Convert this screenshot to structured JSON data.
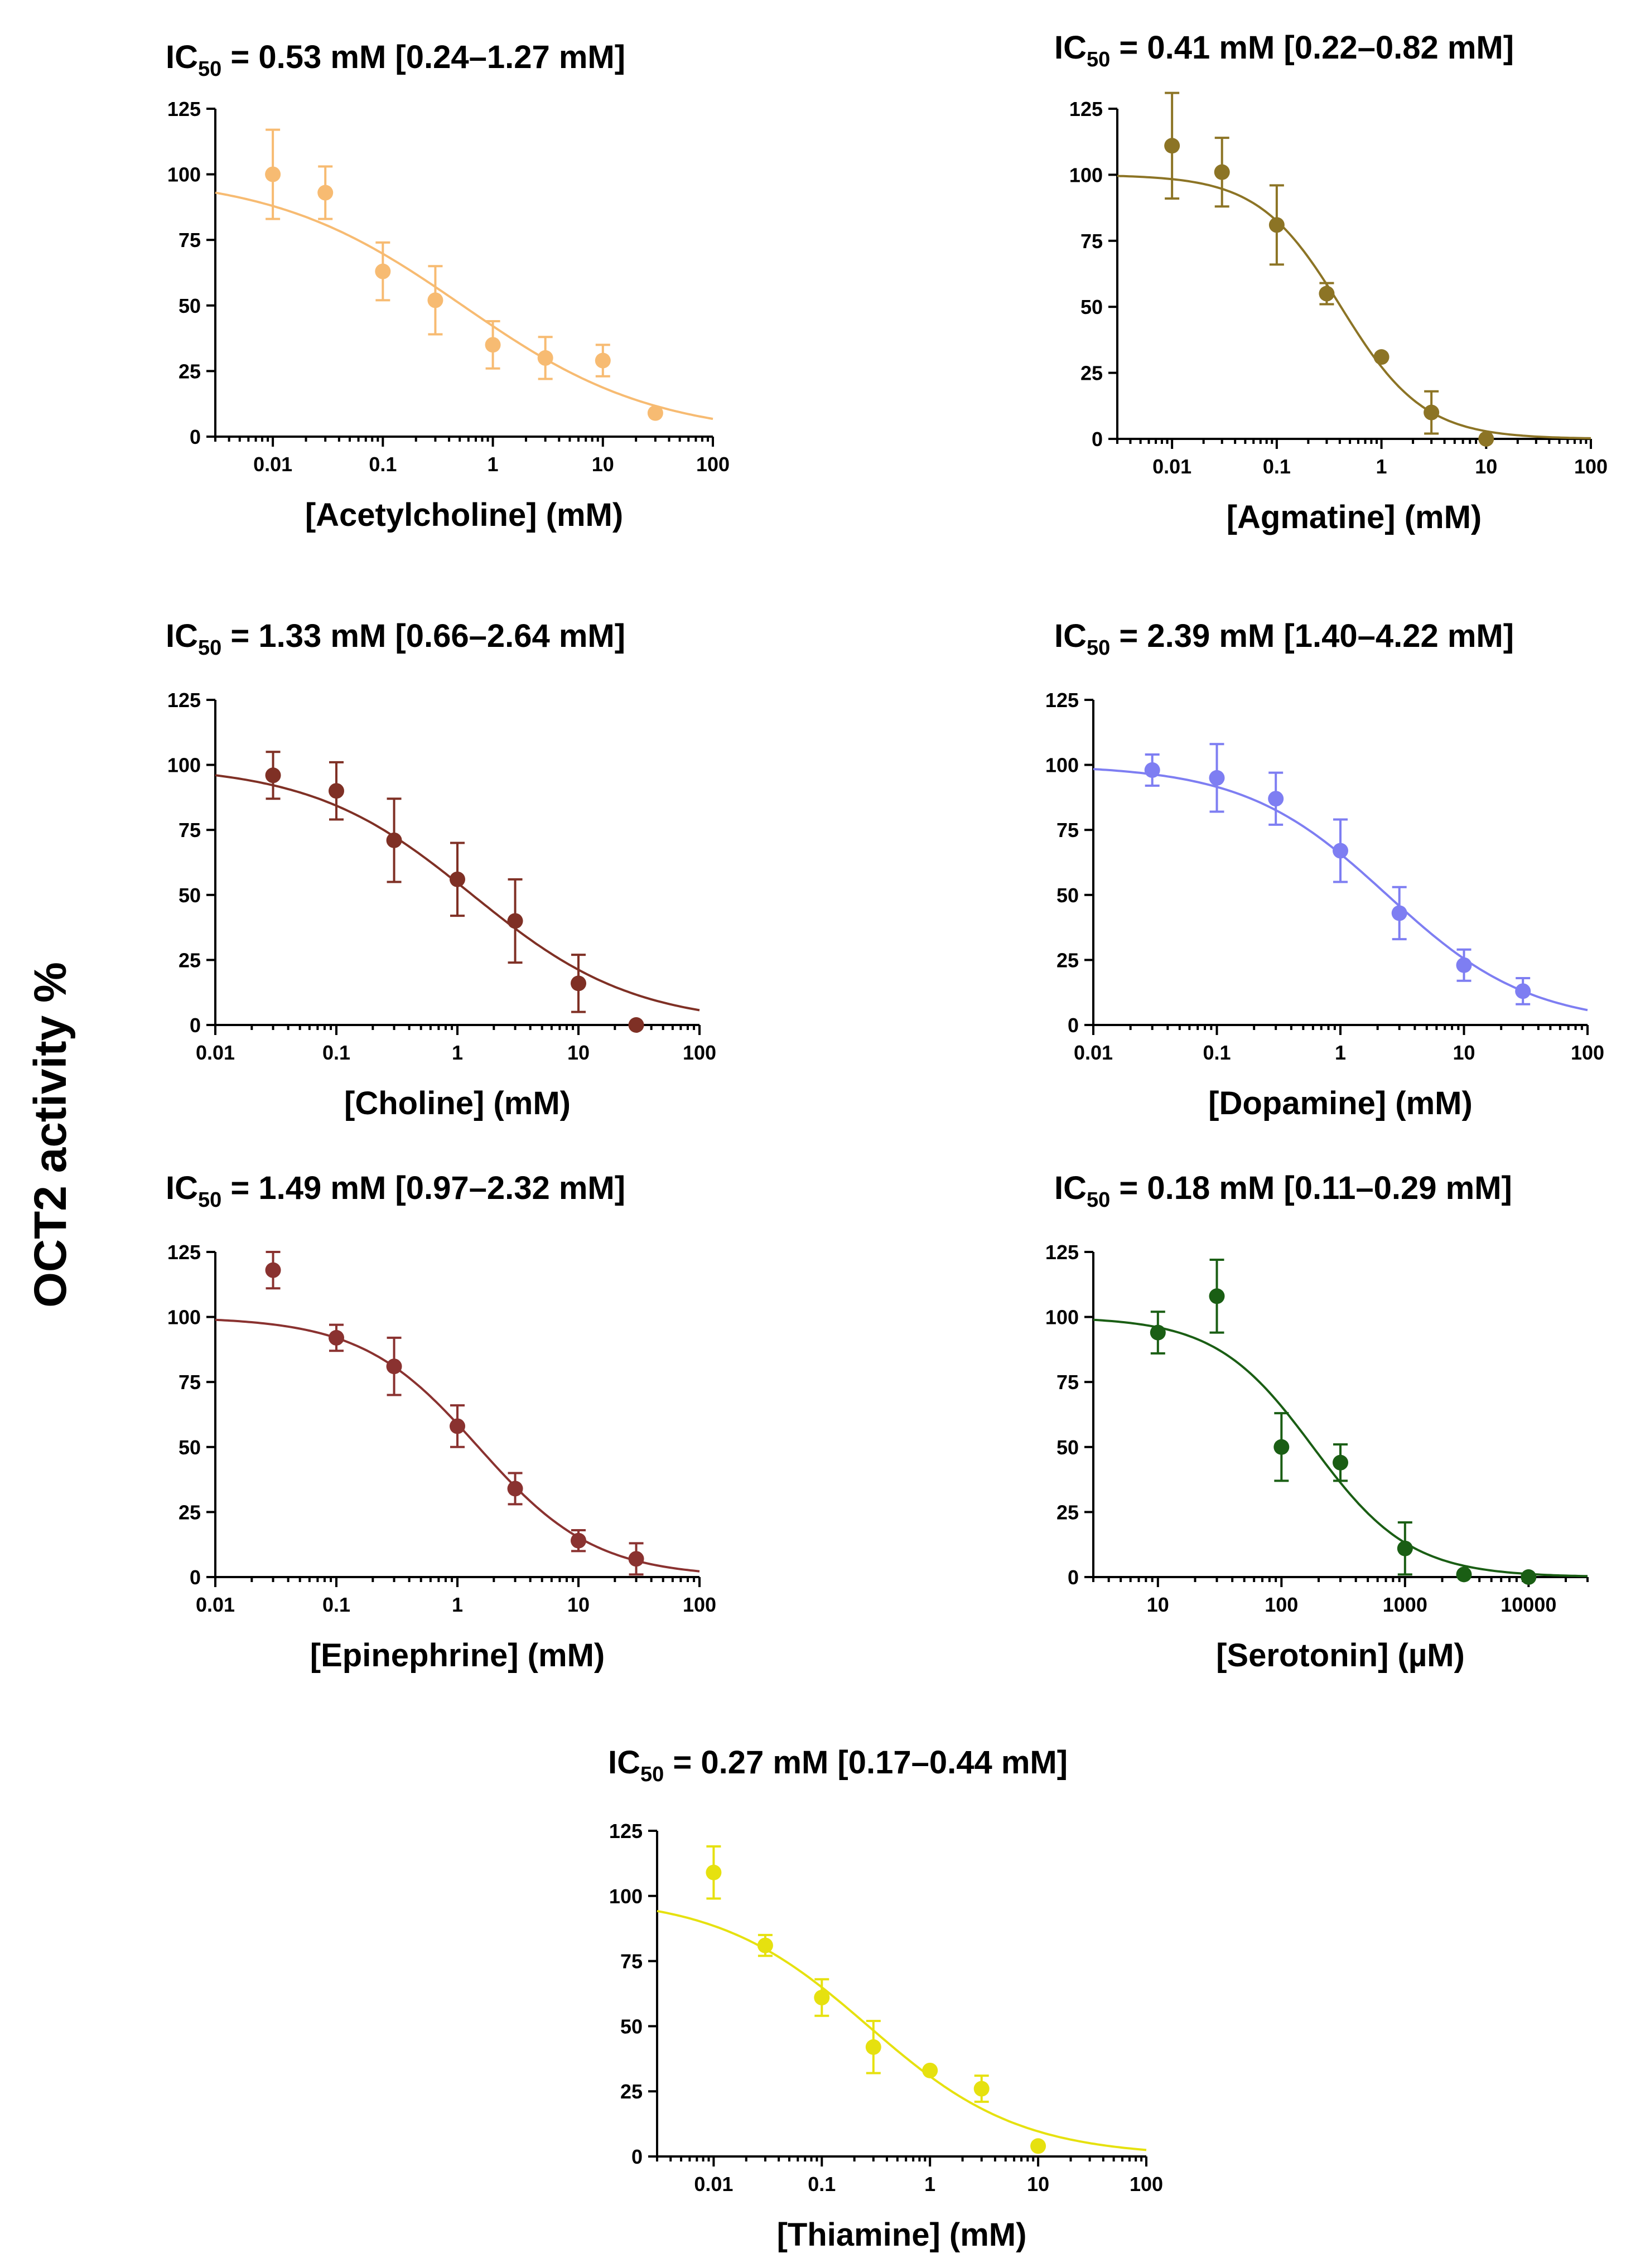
{
  "figure": {
    "ylabel": "OCT2 activity %"
  },
  "chart_data": [
    {
      "type": "scatter",
      "ic50_prefix": "IC",
      "ic50_sub": "50",
      "ic50_value": " = 0.53 mM [0.24–1.27 mM]",
      "xlabel": "[Acetylcholine] (mM)",
      "color": "#f7bb72",
      "xlog": true,
      "xlim": [
        0.003,
        100
      ],
      "ylim": [
        0,
        125
      ],
      "xticks": [
        0.01,
        0.1,
        1,
        10,
        100
      ],
      "xtick_labels": [
        "0.01",
        "0.1",
        "1",
        "10",
        "100"
      ],
      "yticks": [
        0,
        25,
        50,
        75,
        100,
        125
      ],
      "ytick_labels": [
        "0",
        "25",
        "50",
        "75",
        "100",
        "125"
      ],
      "points": [
        {
          "x": 0.01,
          "y": 100,
          "err": 17
        },
        {
          "x": 0.03,
          "y": 93,
          "err": 10
        },
        {
          "x": 0.1,
          "y": 63,
          "err": 11
        },
        {
          "x": 0.3,
          "y": 52,
          "err": 13
        },
        {
          "x": 1,
          "y": 35,
          "err": 9
        },
        {
          "x": 3,
          "y": 30,
          "err": 8
        },
        {
          "x": 10,
          "y": 29,
          "err": 6
        },
        {
          "x": 30,
          "y": 9,
          "err": 0
        }
      ],
      "fit": {
        "top": 100,
        "bottom": 0,
        "ic50": 0.53,
        "hill": 0.5
      }
    },
    {
      "type": "scatter",
      "ic50_prefix": "IC",
      "ic50_sub": "50",
      "ic50_value": " = 0.41 mM [0.22–0.82 mM]",
      "xlabel": "[Agmatine] (mM)",
      "color": "#8c7425",
      "xlog": true,
      "xlim": [
        0.003,
        100
      ],
      "ylim": [
        0,
        125
      ],
      "xticks": [
        0.01,
        0.1,
        1,
        10,
        100
      ],
      "xtick_labels": [
        "0.01",
        "0.1",
        "1",
        "10",
        "100"
      ],
      "yticks": [
        0,
        25,
        50,
        75,
        100,
        125
      ],
      "ytick_labels": [
        "0",
        "25",
        "50",
        "75",
        "100",
        "125"
      ],
      "points": [
        {
          "x": 0.01,
          "y": 111,
          "err": 20
        },
        {
          "x": 0.03,
          "y": 101,
          "err": 13
        },
        {
          "x": 0.1,
          "y": 81,
          "err": 15
        },
        {
          "x": 0.3,
          "y": 55,
          "err": 4
        },
        {
          "x": 1,
          "y": 31,
          "err": 0
        },
        {
          "x": 3,
          "y": 10,
          "err": 8
        },
        {
          "x": 10,
          "y": 0,
          "err": 0
        }
      ],
      "fit": {
        "top": 100,
        "bottom": 0,
        "ic50": 0.41,
        "hill": 1.1
      }
    },
    {
      "type": "scatter",
      "ic50_prefix": "IC",
      "ic50_sub": "50",
      "ic50_value": " = 1.33 mM [0.66–2.64 mM]",
      "xlabel": "[Choline] (mM)",
      "color": "#7f3025",
      "xlog": true,
      "xlim": [
        0.01,
        100
      ],
      "ylim": [
        0,
        125
      ],
      "xticks": [
        0.01,
        0.1,
        1,
        10,
        100
      ],
      "xtick_labels": [
        "0.01",
        "0.1",
        "1",
        "10",
        "100"
      ],
      "yticks": [
        0,
        25,
        50,
        75,
        100,
        125
      ],
      "ytick_labels": [
        "0",
        "25",
        "50",
        "75",
        "100",
        "125"
      ],
      "points": [
        {
          "x": 0.03,
          "y": 96,
          "err": 9
        },
        {
          "x": 0.1,
          "y": 90,
          "err": 11
        },
        {
          "x": 0.3,
          "y": 71,
          "err": 16
        },
        {
          "x": 1,
          "y": 56,
          "err": 14
        },
        {
          "x": 3,
          "y": 40,
          "err": 16
        },
        {
          "x": 10,
          "y": 16,
          "err": 11
        },
        {
          "x": 30,
          "y": 0,
          "err": 0
        }
      ],
      "fit": {
        "top": 100,
        "bottom": 0,
        "ic50": 1.33,
        "hill": 0.65
      }
    },
    {
      "type": "scatter",
      "ic50_prefix": "IC",
      "ic50_sub": "50",
      "ic50_value": " = 2.39 mM [1.40–4.22 mM]",
      "xlabel": "[Dopamine] (mM)",
      "color": "#7e7ef2",
      "xlog": true,
      "xlim": [
        0.01,
        100
      ],
      "ylim": [
        0,
        125
      ],
      "xticks": [
        0.01,
        0.1,
        1,
        10,
        100
      ],
      "xtick_labels": [
        "0.01",
        "0.1",
        "1",
        "10",
        "100"
      ],
      "yticks": [
        0,
        25,
        50,
        75,
        100,
        125
      ],
      "ytick_labels": [
        "0",
        "25",
        "50",
        "75",
        "100",
        "125"
      ],
      "points": [
        {
          "x": 0.03,
          "y": 98,
          "err": 6
        },
        {
          "x": 0.1,
          "y": 95,
          "err": 13
        },
        {
          "x": 0.3,
          "y": 87,
          "err": 10
        },
        {
          "x": 1,
          "y": 67,
          "err": 12
        },
        {
          "x": 3,
          "y": 43,
          "err": 10
        },
        {
          "x": 10,
          "y": 23,
          "err": 6
        },
        {
          "x": 30,
          "y": 13,
          "err": 5
        }
      ],
      "fit": {
        "top": 100,
        "bottom": 0,
        "ic50": 2.39,
        "hill": 0.75
      }
    },
    {
      "type": "scatter",
      "ic50_prefix": "IC",
      "ic50_sub": "50",
      "ic50_value": " = 1.49 mM [0.97–2.32 mM]",
      "xlabel": "[Epinephrine] (mM)",
      "color": "#8a3230",
      "xlog": true,
      "xlim": [
        0.01,
        100
      ],
      "ylim": [
        0,
        125
      ],
      "xticks": [
        0.01,
        0.1,
        1,
        10,
        100
      ],
      "xtick_labels": [
        "0.01",
        "0.1",
        "1",
        "10",
        "100"
      ],
      "yticks": [
        0,
        25,
        50,
        75,
        100,
        125
      ],
      "ytick_labels": [
        "0",
        "25",
        "50",
        "75",
        "100",
        "125"
      ],
      "points": [
        {
          "x": 0.03,
          "y": 118,
          "err": 7
        },
        {
          "x": 0.1,
          "y": 92,
          "err": 5
        },
        {
          "x": 0.3,
          "y": 81,
          "err": 11
        },
        {
          "x": 1,
          "y": 58,
          "err": 8
        },
        {
          "x": 3,
          "y": 34,
          "err": 6
        },
        {
          "x": 10,
          "y": 14,
          "err": 4
        },
        {
          "x": 30,
          "y": 7,
          "err": 6
        }
      ],
      "fit": {
        "top": 100,
        "bottom": 0,
        "ic50": 1.49,
        "hill": 0.9
      }
    },
    {
      "type": "scatter",
      "ic50_prefix": "IC",
      "ic50_sub": "50",
      "ic50_value": " = 0.18 mM [0.11–0.29 mM]",
      "xlabel": "[Serotonin] (µM)",
      "color": "#1a5e14",
      "xlog": true,
      "xlim": [
        3,
        30000
      ],
      "ylim": [
        0,
        125
      ],
      "xticks": [
        10,
        100,
        1000,
        10000
      ],
      "xtick_labels": [
        "10",
        "100",
        "1000",
        "10000"
      ],
      "yticks": [
        0,
        25,
        50,
        75,
        100,
        125
      ],
      "ytick_labels": [
        "0",
        "25",
        "50",
        "75",
        "100",
        "125"
      ],
      "points": [
        {
          "x": 10,
          "y": 94,
          "err": 8
        },
        {
          "x": 30,
          "y": 108,
          "err": 14
        },
        {
          "x": 100,
          "y": 50,
          "err": 13
        },
        {
          "x": 300,
          "y": 44,
          "err": 7
        },
        {
          "x": 1000,
          "y": 11,
          "err": 10
        },
        {
          "x": 3000,
          "y": 1,
          "err": 0
        },
        {
          "x": 10000,
          "y": 0,
          "err": 0
        }
      ],
      "fit": {
        "top": 100,
        "bottom": 0,
        "ic50": 180,
        "hill": 1.1
      }
    },
    {
      "type": "scatter",
      "ic50_prefix": "IC",
      "ic50_sub": "50",
      "ic50_value": " = 0.27 mM [0.17–0.44 mM]",
      "xlabel": "[Thiamine] (mM)",
      "color": "#e6e10f",
      "xlog": true,
      "xlim": [
        0.003,
        100
      ],
      "ylim": [
        0,
        125
      ],
      "xticks": [
        0.01,
        0.1,
        1,
        10,
        100
      ],
      "xtick_labels": [
        "0.01",
        "0.1",
        "1",
        "10",
        "100"
      ],
      "yticks": [
        0,
        25,
        50,
        75,
        100,
        125
      ],
      "ytick_labels": [
        "0",
        "25",
        "50",
        "75",
        "100",
        "125"
      ],
      "points": [
        {
          "x": 0.01,
          "y": 109,
          "err": 10
        },
        {
          "x": 0.03,
          "y": 81,
          "err": 4
        },
        {
          "x": 0.1,
          "y": 61,
          "err": 7
        },
        {
          "x": 0.3,
          "y": 42,
          "err": 10
        },
        {
          "x": 1,
          "y": 33,
          "err": 0
        },
        {
          "x": 3,
          "y": 26,
          "err": 5
        },
        {
          "x": 10,
          "y": 4,
          "err": 0
        }
      ],
      "fit": {
        "top": 100,
        "bottom": 0,
        "ic50": 0.27,
        "hill": 0.62
      }
    }
  ]
}
